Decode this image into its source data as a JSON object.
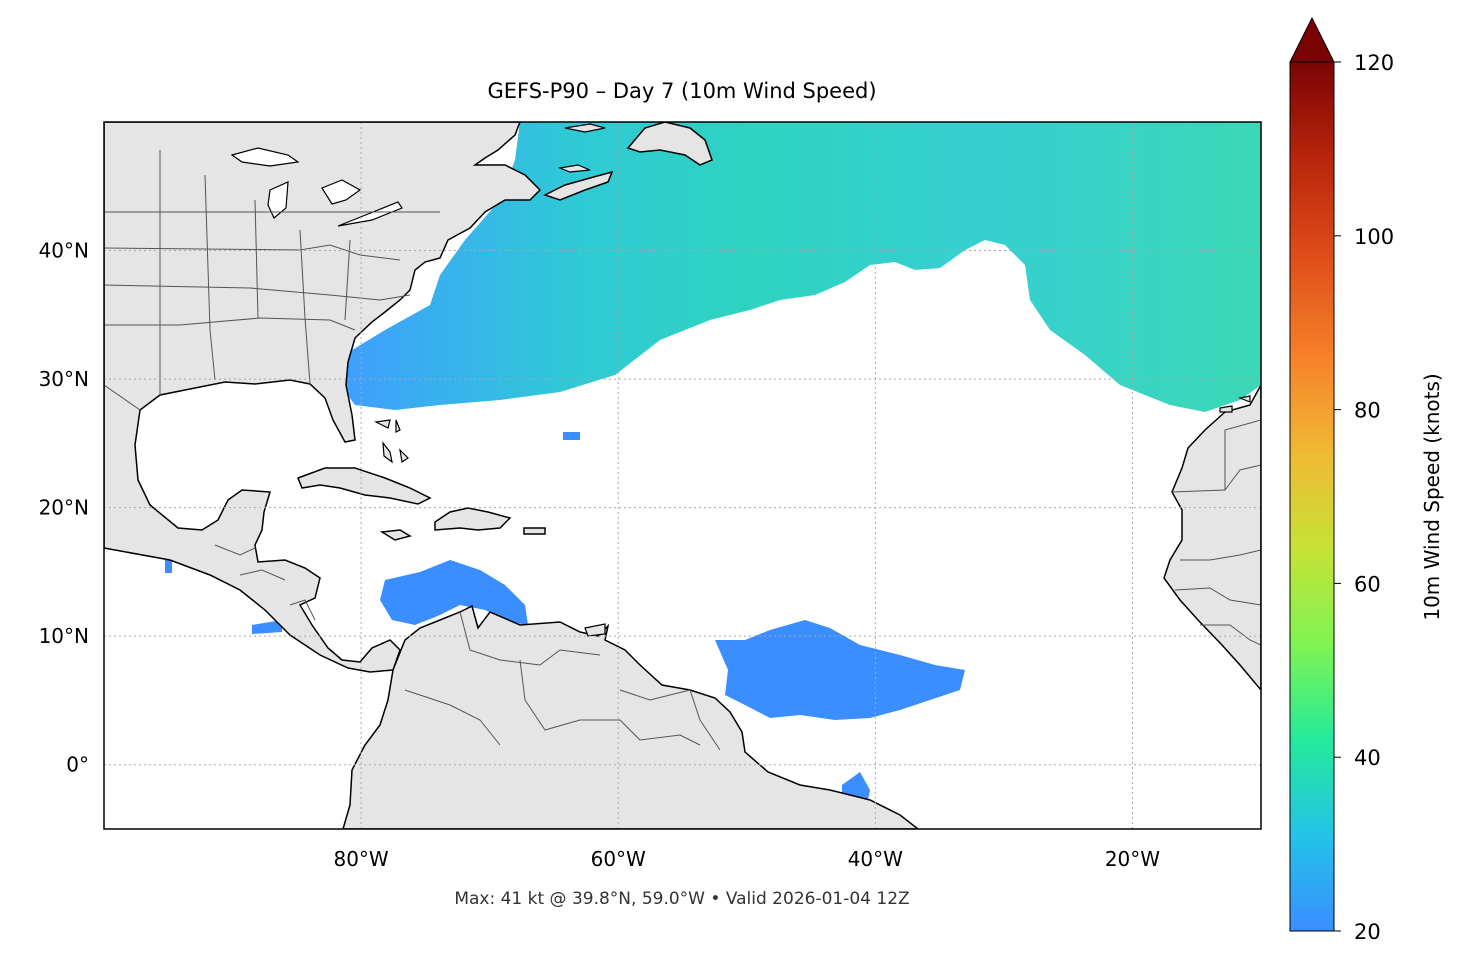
{
  "title": "GEFS-P90 – Day 7 (10m Wind Speed)",
  "footer": "Max: 41 kt @ 39.8°N, 59.0°W • Valid 2026-01-04 12Z",
  "map": {
    "lon_range": [
      -100,
      -10
    ],
    "lat_range": [
      -5,
      50
    ],
    "lon_ticks": [
      {
        "value": -80,
        "label": "80°W"
      },
      {
        "value": -60,
        "label": "60°W"
      },
      {
        "value": -40,
        "label": "40°W"
      },
      {
        "value": -20,
        "label": "20°W"
      }
    ],
    "lat_ticks": [
      {
        "value": 40,
        "label": "40°N"
      },
      {
        "value": 30,
        "label": "30°N"
      },
      {
        "value": 20,
        "label": "20°N"
      },
      {
        "value": 10,
        "label": "10°N"
      },
      {
        "value": 0,
        "label": "0°"
      }
    ],
    "gridlines": true,
    "land_color": "#e5e5e5",
    "coast_color": "#000000",
    "border_color": "#555555"
  },
  "colorbar": {
    "label": "10m Wind Speed (knots)",
    "min": 20,
    "max": 120,
    "extend": "max",
    "ticks": [
      {
        "value": 20,
        "label": "20"
      },
      {
        "value": 40,
        "label": "40"
      },
      {
        "value": 60,
        "label": "60"
      },
      {
        "value": 80,
        "label": "80"
      },
      {
        "value": 100,
        "label": "100"
      },
      {
        "value": 120,
        "label": "120"
      }
    ],
    "colors": [
      "#3a8eff",
      "#23c3e8",
      "#25ea9a",
      "#7ff452",
      "#c6e236",
      "#f0b934",
      "#f7812a",
      "#e0501b",
      "#b8250c",
      "#7a0403"
    ]
  }
}
